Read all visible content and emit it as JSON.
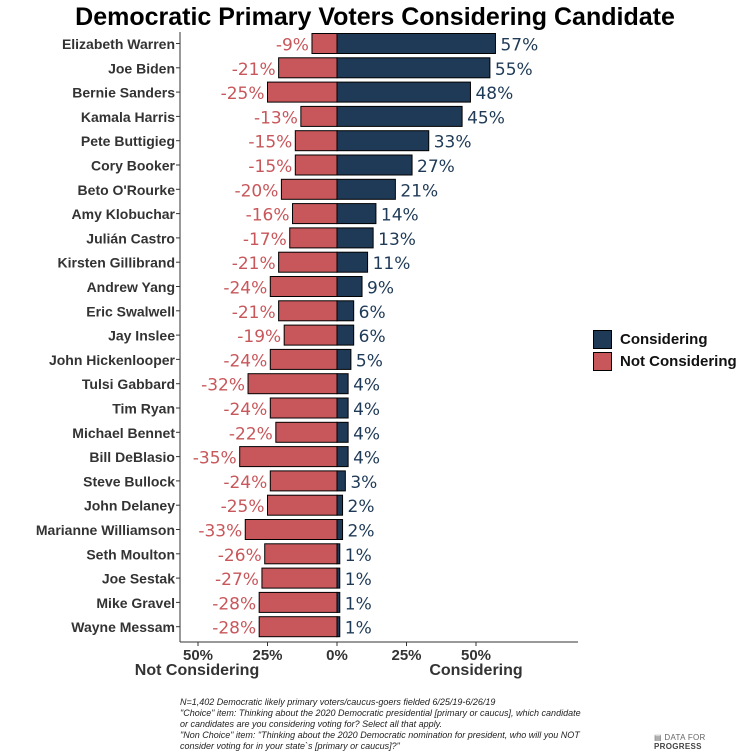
{
  "chart_data": {
    "type": "bar",
    "title": "Democratic Primary Voters Considering Candidate",
    "orientation": "horizontal-diverging",
    "xlim": [
      -0.5,
      0.5
    ],
    "x_ticks": [
      {
        "value": -0.5,
        "label": "50%"
      },
      {
        "value": -0.25,
        "label": "25%"
      },
      {
        "value": 0,
        "label": "0%"
      },
      {
        "value": 0.25,
        "label": "25%"
      },
      {
        "value": 0.5,
        "label": "50%"
      }
    ],
    "xlabel_left": "Not Considering",
    "xlabel_right": "Considering",
    "grid": false,
    "legend_position": "right",
    "colors": {
      "considering": "#1f3a57",
      "not_considering": "#c8575b",
      "considering_text": "#1f3a57",
      "not_considering_text": "#c8575b"
    },
    "categories": [
      "Elizabeth Warren",
      "Joe Biden",
      "Bernie Sanders",
      "Kamala Harris",
      "Pete Buttigieg",
      "Cory Booker",
      "Beto O'Rourke",
      "Amy Klobuchar",
      "Julián Castro",
      "Kirsten Gillibrand",
      "Andrew Yang",
      "Eric Swalwell",
      "Jay Inslee",
      "John Hickenlooper",
      "Tulsi Gabbard",
      "Tim Ryan",
      "Michael Bennet",
      "Bill DeBlasio",
      "Steve Bullock",
      "John Delaney",
      "Marianne Williamson",
      "Seth Moulton",
      "Joe Sestak",
      "Mike Gravel",
      "Wayne Messam"
    ],
    "series": [
      {
        "name": "Considering",
        "values": [
          57,
          55,
          48,
          45,
          33,
          27,
          21,
          14,
          13,
          11,
          9,
          6,
          6,
          5,
          4,
          4,
          4,
          4,
          3,
          2,
          2,
          1,
          1,
          1,
          1
        ],
        "labels": [
          "57%",
          "55%",
          "48%",
          "45%",
          "33%",
          "27%",
          "21%",
          "14%",
          "13%",
          "11%",
          "9%",
          "6%",
          "6%",
          "5%",
          "4%",
          "4%",
          "4%",
          "4%",
          "3%",
          "2%",
          "2%",
          "1%",
          "1%",
          "1%",
          "1%"
        ]
      },
      {
        "name": "Not Considering",
        "values": [
          -9,
          -21,
          -25,
          -13,
          -15,
          -15,
          -20,
          -16,
          -17,
          -21,
          -24,
          -21,
          -19,
          -24,
          -32,
          -24,
          -22,
          -35,
          -24,
          -25,
          -33,
          -26,
          -27,
          -28,
          -28
        ],
        "labels": [
          "-9%",
          "-21%",
          "-25%",
          "-13%",
          "-15%",
          "-15%",
          "-20%",
          "-16%",
          "-17%",
          "-21%",
          "-24%",
          "-21%",
          "-19%",
          "-24%",
          "-32%",
          "-24%",
          "-22%",
          "-35%",
          "-24%",
          "-25%",
          "-33%",
          "-26%",
          "-27%",
          "-28%",
          "-28%"
        ]
      }
    ],
    "legend": [
      {
        "label": "Considering",
        "color": "#1f3a57"
      },
      {
        "label": "Not Considering",
        "color": "#c8575b"
      }
    ]
  },
  "note_lines": [
    "N=1,402 Democratic likely primary voters/caucus-goers fielded 6/25/19-6/26/19",
    "\"Choice\" item: Thinking about the 2020 Democratic presidential [primary or caucus], which candidate",
    "or candidates are you considering voting for? Select all that apply.",
    "\"Non Choice\" item: \"Thinking about the 2020 Democratic nomination for president, who will you NOT",
    "consider voting for in your state`s [primary or caucus]?\""
  ],
  "brand": {
    "prefix": "DATA FOR ",
    "name": "PROGRESS"
  }
}
